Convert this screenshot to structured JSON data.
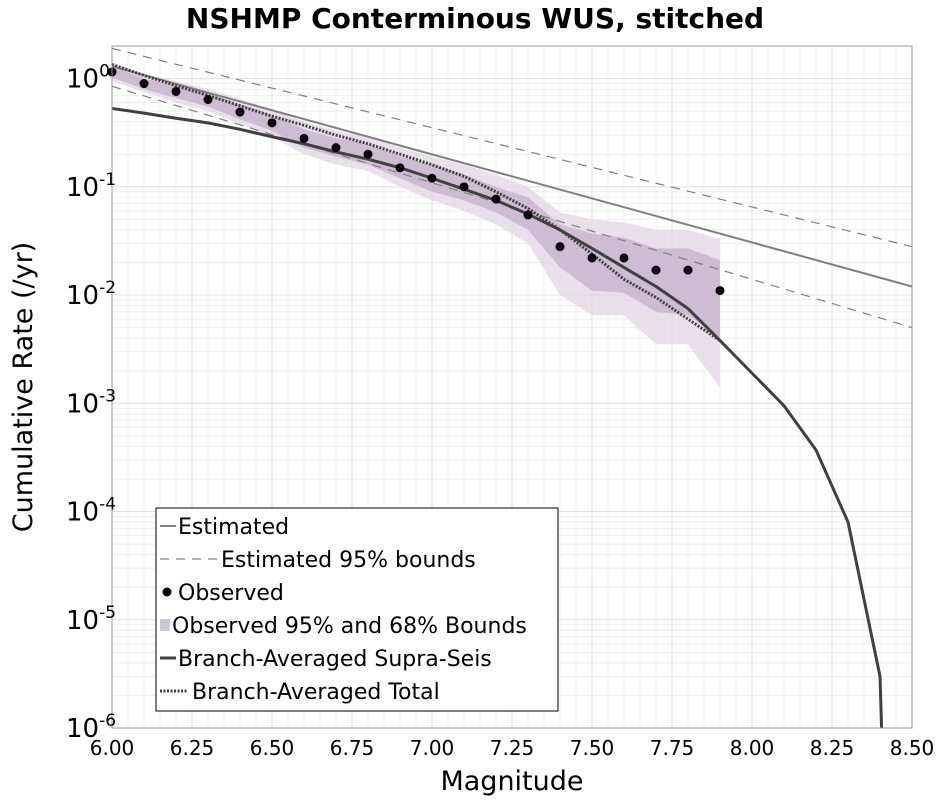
{
  "chart_data": {
    "type": "line",
    "title": "NSHMP Conterminous WUS, stitched",
    "xlabel": "Magnitude",
    "ylabel": "Cumulative Rate (/yr)",
    "xlim": [
      6.0,
      8.5
    ],
    "ylim": [
      1e-06,
      2.0
    ],
    "yscale": "log",
    "grid": true,
    "x_ticks": [
      "6.00",
      "6.25",
      "6.50",
      "6.75",
      "7.00",
      "7.25",
      "7.50",
      "7.75",
      "8.00",
      "8.25",
      "8.50"
    ],
    "y_ticks": [
      {
        "base": "10",
        "exp": "0",
        "value": 1
      },
      {
        "base": "10",
        "exp": "-1",
        "value": 0.1
      },
      {
        "base": "10",
        "exp": "-2",
        "value": 0.01
      },
      {
        "base": "10",
        "exp": "-3",
        "value": 0.001
      },
      {
        "base": "10",
        "exp": "-4",
        "value": 0.0001
      },
      {
        "base": "10",
        "exp": "-5",
        "value": 1e-05
      },
      {
        "base": "10",
        "exp": "-6",
        "value": 1e-06
      }
    ],
    "legend": {
      "placement": "lower-left",
      "entries": [
        "Estimated",
        "Estimated 95% bounds",
        "Observed",
        "Observed 95% and 68% Bounds",
        "Branch-Averaged Supra-Seis",
        "Branch-Averaged Total"
      ]
    },
    "series": {
      "estimated": {
        "x": [
          6.0,
          8.5
        ],
        "y": [
          1.3,
          0.012
        ],
        "color": "#808080"
      },
      "estimated_upper": {
        "x": [
          6.0,
          8.5
        ],
        "y": [
          1.9,
          0.028
        ],
        "color": "#808080"
      },
      "estimated_lower": {
        "x": [
          6.0,
          8.5
        ],
        "y": [
          0.85,
          0.005
        ],
        "color": "#808080"
      },
      "observed": {
        "x": [
          6.0,
          6.1,
          6.2,
          6.3,
          6.4,
          6.5,
          6.6,
          6.7,
          6.8,
          6.9,
          7.0,
          7.1,
          7.2,
          7.3,
          7.4,
          7.5,
          7.6,
          7.7,
          7.8,
          7.9
        ],
        "y": [
          1.15,
          0.9,
          0.76,
          0.64,
          0.49,
          0.39,
          0.28,
          0.23,
          0.2,
          0.15,
          0.12,
          0.1,
          0.077,
          0.055,
          0.028,
          0.022,
          0.022,
          0.017,
          0.017,
          0.011
        ],
        "color": "#000000"
      },
      "observed_95": {
        "x": [
          6.0,
          6.1,
          6.2,
          6.3,
          6.4,
          6.5,
          6.6,
          6.7,
          6.8,
          6.9,
          7.0,
          7.1,
          7.2,
          7.3,
          7.4,
          7.5,
          7.6,
          7.7,
          7.8,
          7.9
        ],
        "upper": [
          1.4,
          1.1,
          0.95,
          0.8,
          0.65,
          0.52,
          0.4,
          0.33,
          0.29,
          0.23,
          0.19,
          0.16,
          0.13,
          0.1,
          0.058,
          0.05,
          0.047,
          0.04,
          0.04,
          0.033
        ],
        "lower": [
          0.95,
          0.75,
          0.6,
          0.5,
          0.38,
          0.29,
          0.2,
          0.16,
          0.14,
          0.1,
          0.075,
          0.06,
          0.045,
          0.03,
          0.01,
          0.0065,
          0.0065,
          0.0035,
          0.0035,
          0.0014
        ],
        "color": "#e3d5e6"
      },
      "observed_68": {
        "x": [
          6.0,
          6.1,
          6.2,
          6.3,
          6.4,
          6.5,
          6.6,
          6.7,
          6.8,
          6.9,
          7.0,
          7.1,
          7.2,
          7.3,
          7.4,
          7.5,
          7.6,
          7.7,
          7.8,
          7.9
        ],
        "upper": [
          1.3,
          1.0,
          0.87,
          0.73,
          0.58,
          0.46,
          0.34,
          0.28,
          0.25,
          0.19,
          0.16,
          0.13,
          0.1,
          0.08,
          0.045,
          0.037,
          0.034,
          0.027,
          0.027,
          0.021
        ],
        "lower": [
          1.02,
          0.8,
          0.66,
          0.55,
          0.42,
          0.33,
          0.23,
          0.19,
          0.16,
          0.12,
          0.09,
          0.075,
          0.058,
          0.04,
          0.018,
          0.011,
          0.0105,
          0.007,
          0.0065,
          0.004
        ],
        "color": "#c6afcc"
      },
      "branch_supra": {
        "x": [
          6.0,
          6.1,
          6.2,
          6.3,
          6.4,
          6.5,
          6.6,
          6.7,
          6.8,
          6.9,
          7.0,
          7.1,
          7.2,
          7.3,
          7.4,
          7.5,
          7.6,
          7.7,
          7.8,
          7.9,
          8.0,
          8.1,
          8.2,
          8.3,
          8.4,
          8.405
        ],
        "y": [
          0.53,
          0.48,
          0.43,
          0.39,
          0.34,
          0.29,
          0.25,
          0.21,
          0.18,
          0.15,
          0.12,
          0.095,
          0.075,
          0.056,
          0.04,
          0.027,
          0.018,
          0.012,
          0.0075,
          0.0038,
          0.0019,
          0.00095,
          0.00037,
          8e-05,
          3e-06,
          1e-06
        ],
        "color": "#404040"
      },
      "branch_total": {
        "x": [
          6.0,
          6.1,
          6.2,
          6.3,
          6.4,
          6.5,
          6.6,
          6.7,
          6.8,
          6.9,
          7.0,
          7.1,
          7.2,
          7.3,
          7.4,
          7.5,
          7.6,
          7.7,
          7.8,
          7.9
        ],
        "y": [
          1.35,
          1.07,
          0.86,
          0.7,
          0.56,
          0.45,
          0.37,
          0.3,
          0.25,
          0.2,
          0.16,
          0.125,
          0.09,
          0.063,
          0.04,
          0.024,
          0.014,
          0.0095,
          0.006,
          0.0038
        ],
        "color": "#404040"
      }
    }
  }
}
